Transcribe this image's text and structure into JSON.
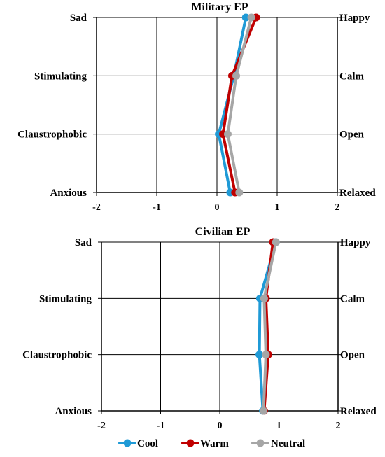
{
  "chart_data": [
    {
      "type": "line",
      "title": "Military EP",
      "left_labels": [
        "Sad",
        "Stimulating",
        "Claustrophobic",
        "Anxious"
      ],
      "right_labels": [
        "Happy",
        "Calm",
        "Open",
        "Relaxed"
      ],
      "xlim": [
        -2,
        2
      ],
      "xticks": [
        "-2",
        "-1",
        "0",
        "1",
        "2"
      ],
      "grid": true,
      "series": [
        {
          "name": "Cool",
          "values": [
            0.48,
            0.28,
            0.03,
            0.22
          ]
        },
        {
          "name": "Warm",
          "values": [
            0.65,
            0.25,
            0.1,
            0.3
          ]
        },
        {
          "name": "Neutral",
          "values": [
            0.57,
            0.32,
            0.18,
            0.37
          ]
        }
      ]
    },
    {
      "type": "line",
      "title": "Civilian EP",
      "left_labels": [
        "Sad",
        "Stimulating",
        "Claustrophobic",
        "Anxious"
      ],
      "right_labels": [
        "Happy",
        "Calm",
        "Open",
        "Relaxed"
      ],
      "xlim": [
        -2,
        2
      ],
      "xticks": [
        "-2",
        "-1",
        "0",
        "1",
        "2"
      ],
      "grid": true,
      "series": [
        {
          "name": "Cool",
          "values": [
            0.95,
            0.68,
            0.67,
            0.73
          ]
        },
        {
          "name": "Warm",
          "values": [
            0.9,
            0.78,
            0.82,
            0.75
          ]
        },
        {
          "name": "Neutral",
          "values": [
            0.95,
            0.75,
            0.78,
            0.74
          ]
        }
      ]
    }
  ],
  "legend": {
    "placement": "bottom",
    "items": [
      {
        "label": "Cool",
        "color": "#1f9ad6"
      },
      {
        "label": "Warm",
        "color": "#c00000"
      },
      {
        "label": "Neutral",
        "color": "#a6a6a6"
      }
    ]
  }
}
